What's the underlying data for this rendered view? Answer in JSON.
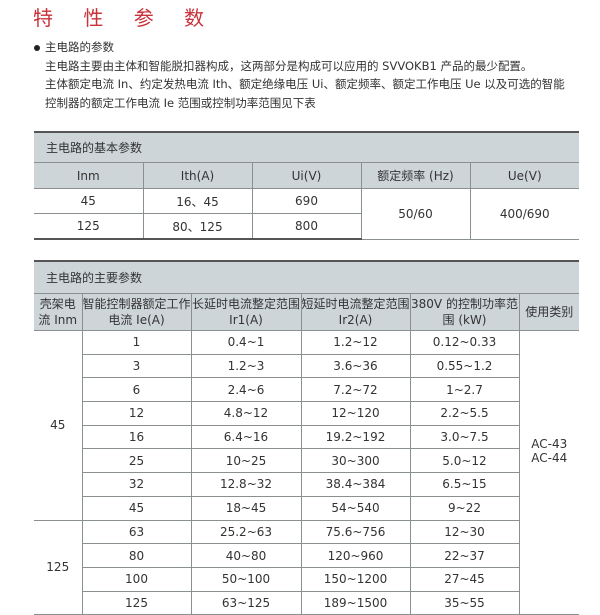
{
  "page_title": "特 性 参 数",
  "intro": {
    "heading": "主电路的参数",
    "lines": [
      "主电路主要由主体和智能脱扣器构成，这两部分是构成可以应用的 SVVOKB1 产品的最少配置。",
      "主体额定电流 In、约定发热电流 Ith、额定绝缘电压 Ui、额定频率、额定工作电压 Ue 以及可选的智能",
      "控制器的额定工作电流 Ie 范围或控制功率范围见下表"
    ]
  },
  "basic_table": {
    "caption": "主电路的基本参数",
    "headers": [
      "Inm",
      "Ith(A)",
      "Ui(V)",
      "额定频率 (Hz)",
      "Ue(V)"
    ],
    "rows": [
      [
        "45",
        "16、45",
        "690"
      ],
      [
        "125",
        "80、125",
        "800"
      ]
    ],
    "frequency": "50/60",
    "ue": "400/690"
  },
  "main_table": {
    "caption": "主电路的主要参数",
    "headers": [
      "壳架电流 Inm",
      "智能控制器额定工作电流 Ie(A)",
      "长延时电流整定范围 Ir1(A)",
      "短延时电流整定范围 Ir2(A)",
      "380V 的控制功率范围 (kW)",
      "使用类别"
    ],
    "groups": [
      "45",
      "125"
    ],
    "rows": [
      [
        "1",
        "0.4~1",
        "1.2~12",
        "0.12~0.33"
      ],
      [
        "3",
        "1.2~3",
        "3.6~36",
        "0.55~1.2"
      ],
      [
        "6",
        "2.4~6",
        "7.2~72",
        "1~2.7"
      ],
      [
        "12",
        "4.8~12",
        "12~120",
        "2.2~5.5"
      ],
      [
        "16",
        "6.4~16",
        "19.2~192",
        "3.0~7.5"
      ],
      [
        "25",
        "10~25",
        "30~300",
        "5.0~12"
      ],
      [
        "32",
        "12.8~32",
        "38.4~384",
        "6.5~15"
      ],
      [
        "45",
        "18~45",
        "54~540",
        "9~22"
      ],
      [
        "63",
        "25.2~63",
        "75.6~756",
        "12~30"
      ],
      [
        "80",
        "40~80",
        "120~960",
        "22~37"
      ],
      [
        "100",
        "50~100",
        "150~1200",
        "27~45"
      ],
      [
        "125",
        "63~125",
        "189~1500",
        "35~55"
      ]
    ],
    "category": [
      "AC-43",
      "AC-44"
    ]
  },
  "colors": {
    "title": "#c8323a",
    "header_bg": "#cdd5d8"
  }
}
